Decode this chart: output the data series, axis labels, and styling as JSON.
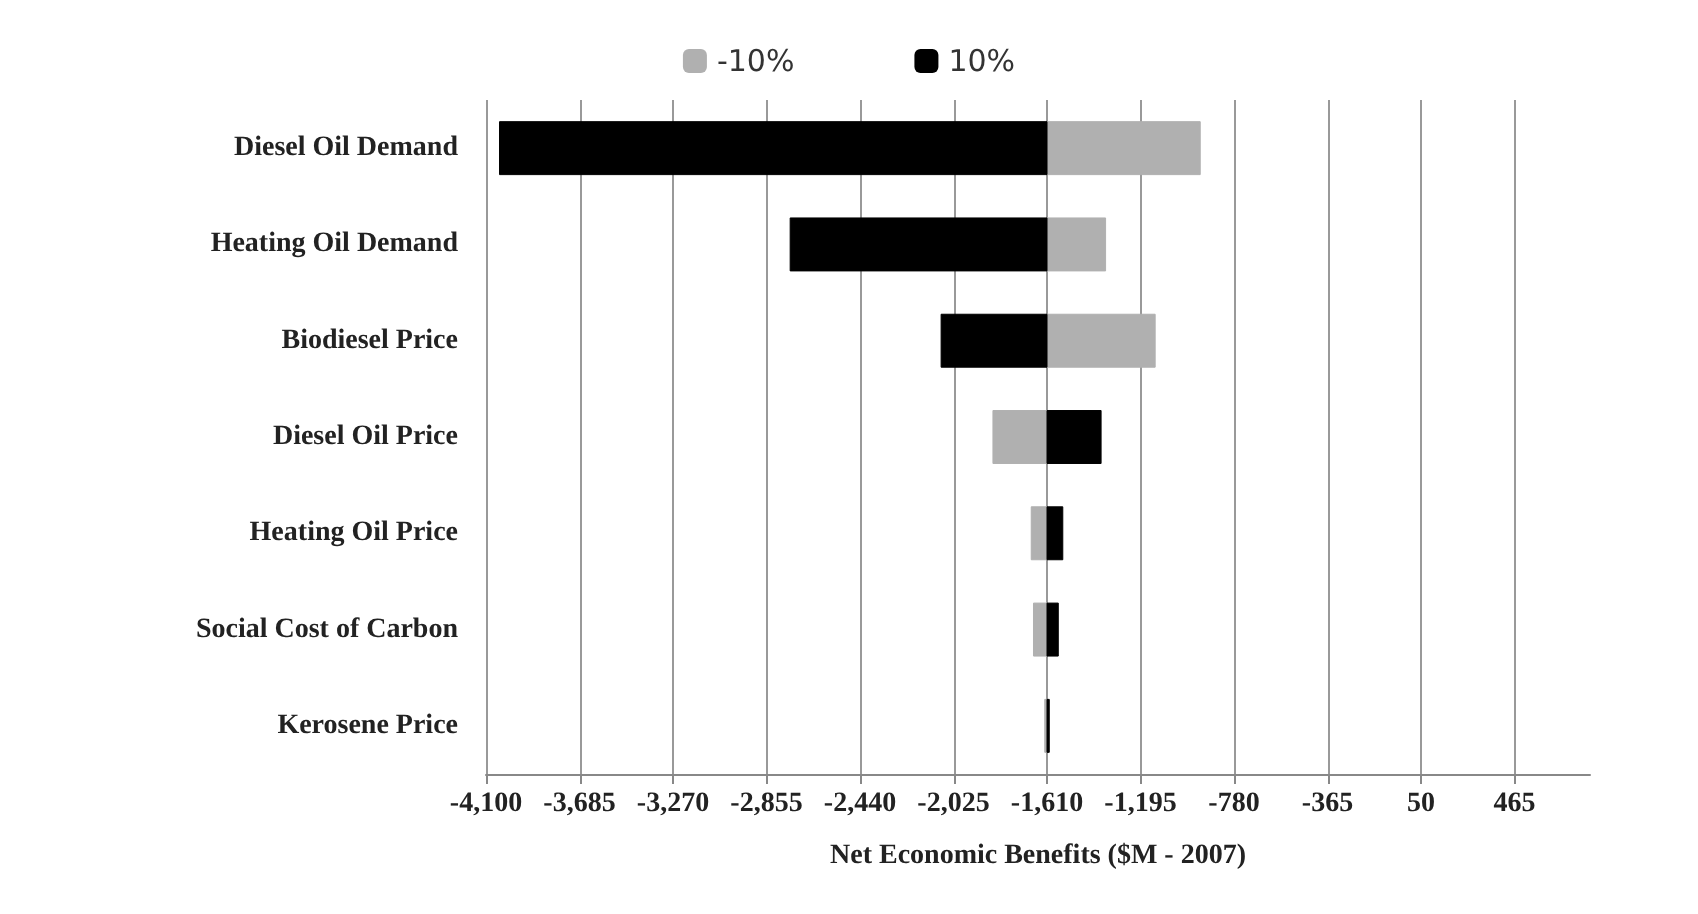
{
  "chart_data": {
    "type": "bar",
    "orientation": "horizontal",
    "xlabel": "Net Economic Benefits ($M - 2007)",
    "categories": [
      "Diesel Oil Demand",
      "Heating Oil Demand",
      "Biodiesel Price",
      "Diesel Oil Price",
      "Heating Oil Price",
      "Social Cost of Carbon",
      "Kerosene Price"
    ],
    "series": [
      {
        "name": "-10%",
        "color": "#b0b0b0",
        "base": [
          -1610,
          -1610,
          -1610,
          -1610,
          -1610,
          -1610,
          -1610
        ],
        "values": [
          680,
          260,
          480,
          -240,
          -70,
          -60,
          -10
        ]
      },
      {
        "name": "10%",
        "color": "#000000",
        "base": [
          -1610,
          -1610,
          -1610,
          -1610,
          -1610,
          -1610,
          -1610
        ],
        "values": [
          -2430,
          -1140,
          -470,
          240,
          70,
          50,
          10
        ]
      }
    ],
    "xlim": [
      -4100,
      800
    ],
    "xticks": [
      {
        "value": -4100,
        "label": "-4,100"
      },
      {
        "value": -3685,
        "label": "-3,685"
      },
      {
        "value": -3270,
        "label": "-3,270"
      },
      {
        "value": -2855,
        "label": "-2,855"
      },
      {
        "value": -2440,
        "label": "-2,440"
      },
      {
        "value": -2025,
        "label": "-2,025"
      },
      {
        "value": -1610,
        "label": "-1,610"
      },
      {
        "value": -1195,
        "label": "-1,195"
      },
      -780,
      -365,
      50,
      465
    ],
    "grid": "x",
    "legend": "top"
  }
}
